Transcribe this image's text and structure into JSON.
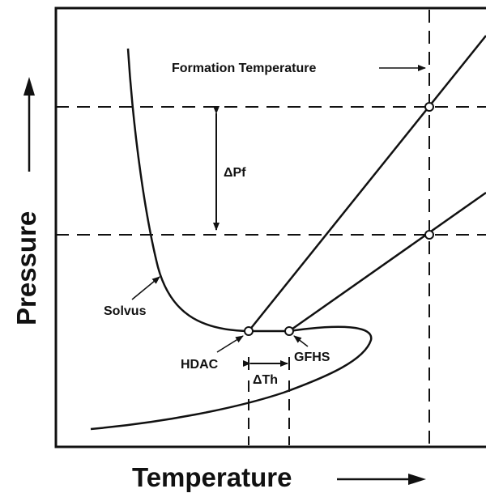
{
  "axes": {
    "x_title": "Temperature",
    "y_title": "Pressure"
  },
  "labels": {
    "formation_temperature": "Formation Temperature",
    "delta_pf": "ΔPf",
    "solvus": "Solvus",
    "hdac": "HDAC",
    "gfhs": "GFHS",
    "delta_th": "ΔTh"
  },
  "colors": {
    "ink": "#111111",
    "background": "#ffffff"
  }
}
